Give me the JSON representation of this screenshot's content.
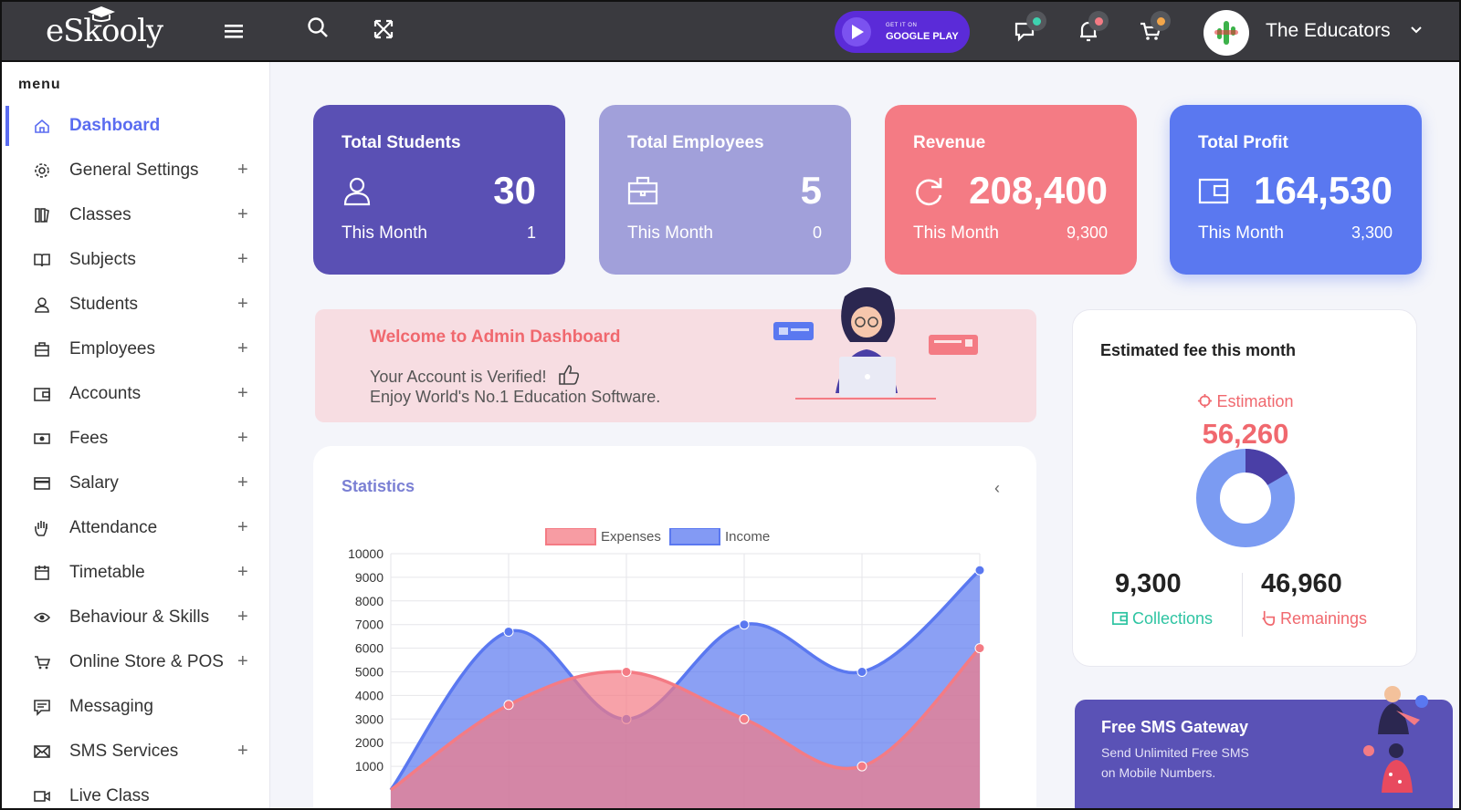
{
  "topbar": {
    "logo": "eSkooly",
    "google_play_small": "GET IT ON",
    "google_play_big": "GOOGLE PLAY",
    "user_name": "The Educators",
    "dot_colors": [
      "#3ed3b0",
      "#f47b84",
      "#f3a64a"
    ]
  },
  "sidebar": {
    "title": "menu",
    "items": [
      {
        "label": "Dashboard",
        "icon": "home-icon",
        "active": true,
        "expandable": false
      },
      {
        "label": "General Settings",
        "icon": "gear-icon",
        "expandable": true
      },
      {
        "label": "Classes",
        "icon": "book-stack-icon",
        "expandable": true
      },
      {
        "label": "Subjects",
        "icon": "open-book-icon",
        "expandable": true
      },
      {
        "label": "Students",
        "icon": "user-icon",
        "expandable": true
      },
      {
        "label": "Employees",
        "icon": "briefcase-icon",
        "expandable": true
      },
      {
        "label": "Accounts",
        "icon": "wallet-icon",
        "expandable": true
      },
      {
        "label": "Fees",
        "icon": "money-icon",
        "expandable": true
      },
      {
        "label": "Salary",
        "icon": "credit-card-icon",
        "expandable": true
      },
      {
        "label": "Attendance",
        "icon": "hand-icon",
        "expandable": true
      },
      {
        "label": "Timetable",
        "icon": "calendar-icon",
        "expandable": true
      },
      {
        "label": "Behaviour & Skills",
        "icon": "eye-icon",
        "expandable": true
      },
      {
        "label": "Online Store & POS",
        "icon": "cart-icon",
        "expandable": true
      },
      {
        "label": "Messaging",
        "icon": "message-icon",
        "expandable": false
      },
      {
        "label": "SMS Services",
        "icon": "envelope-icon",
        "expandable": true
      },
      {
        "label": "Live Class",
        "icon": "video-icon",
        "expandable": false
      }
    ],
    "plus": "+"
  },
  "cards": [
    {
      "title": "Total Students",
      "value": "30",
      "label": "This Month",
      "sub": "1",
      "color": "#5a50b4",
      "icon": "user-icon"
    },
    {
      "title": "Total Employees",
      "value": "5",
      "label": "This Month",
      "sub": "0",
      "color": "#a1a0da",
      "icon": "briefcase-icon"
    },
    {
      "title": "Revenue",
      "value": "208,400",
      "label": "This Month",
      "sub": "9,300",
      "color": "#f47b84",
      "icon": "refresh-icon"
    },
    {
      "title": "Total Profit",
      "value": "164,530",
      "label": "This Month",
      "sub": "3,300",
      "color": "#5a78f0",
      "icon": "wallet-icon"
    }
  ],
  "welcome": {
    "title": "Welcome to Admin Dashboard",
    "line1": "Your Account is Verified!",
    "line2": "Enjoy World's No.1 Education Software."
  },
  "statistics": {
    "title": "Statistics",
    "back": "‹"
  },
  "chart_data": {
    "type": "area",
    "legend_position": "top",
    "series": [
      {
        "name": "Expenses",
        "color": "#f47b84",
        "values": [
          0,
          3600,
          5000,
          3000,
          1000,
          6000
        ]
      },
      {
        "name": "Income",
        "color": "#5a78f0",
        "values": [
          0,
          6700,
          3000,
          7000,
          5000,
          9300
        ]
      }
    ],
    "yticks": [
      "10000",
      "9000",
      "8000",
      "7000",
      "6000",
      "5000",
      "4000",
      "3000",
      "2000",
      "1000"
    ],
    "ylim": [
      0,
      10000
    ],
    "grid": true
  },
  "fee": {
    "title": "Estimated fee this month",
    "estimation_label": "Estimation",
    "estimation_value": "56,260",
    "collections_value": "9,300",
    "collections_label": "Collections",
    "remainings_value": "46,960",
    "remainings_label": "Remainings",
    "donut": {
      "collected_fraction": 0.165,
      "collected_color": "#4a3fa6",
      "remaining_color": "#7b9bf2"
    }
  },
  "sms": {
    "title": "Free SMS Gateway",
    "line1": "Send Unlimited Free SMS",
    "line2": "on Mobile Numbers."
  }
}
